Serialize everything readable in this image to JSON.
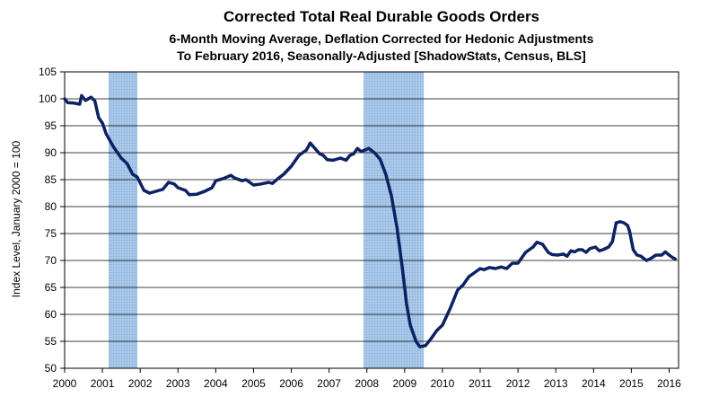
{
  "chart_data": {
    "type": "line",
    "title": "Corrected Total Real Durable Goods Orders",
    "subtitle_1": "6-Month Moving Average, Deflation Corrected for Hedonic Adjustments",
    "subtitle_2": "To February 2016, Seasonally-Adjusted [ShadowStats, Census, BLS]",
    "xlabel": "",
    "ylabel": "Index Level, January 2000 = 100",
    "xlim": [
      2000.0,
      2016.25
    ],
    "ylim": [
      50,
      105
    ],
    "grid": true,
    "legend": "none",
    "line_color": "#0d2163",
    "recession_color": "#a9c8e8",
    "xticks": [
      2000,
      2001,
      2002,
      2003,
      2004,
      2005,
      2006,
      2007,
      2008,
      2009,
      2010,
      2011,
      2012,
      2013,
      2014,
      2015,
      2016
    ],
    "yticks": [
      50,
      55,
      60,
      65,
      70,
      75,
      80,
      85,
      90,
      95,
      100,
      105
    ],
    "recessions": [
      {
        "start": 2001.17,
        "end": 2001.92
      },
      {
        "start": 2007.92,
        "end": 2009.5
      }
    ],
    "series": [
      {
        "points": [
          [
            2000.0,
            100.0
          ],
          [
            2000.08,
            99.3
          ],
          [
            2000.25,
            99.2
          ],
          [
            2000.4,
            99.0
          ],
          [
            2000.45,
            100.6
          ],
          [
            2000.55,
            99.7
          ],
          [
            2000.7,
            100.3
          ],
          [
            2000.8,
            99.6
          ],
          [
            2000.9,
            96.5
          ],
          [
            2001.0,
            95.5
          ],
          [
            2001.1,
            93.5
          ],
          [
            2001.3,
            91.0
          ],
          [
            2001.5,
            89.0
          ],
          [
            2001.65,
            88.0
          ],
          [
            2001.8,
            86.0
          ],
          [
            2001.92,
            85.5
          ],
          [
            2002.1,
            83.0
          ],
          [
            2002.25,
            82.5
          ],
          [
            2002.4,
            82.8
          ],
          [
            2002.5,
            83.0
          ],
          [
            2002.6,
            83.2
          ],
          [
            2002.75,
            84.5
          ],
          [
            2002.9,
            84.2
          ],
          [
            2003.0,
            83.5
          ],
          [
            2003.2,
            83.0
          ],
          [
            2003.3,
            82.2
          ],
          [
            2003.5,
            82.3
          ],
          [
            2003.7,
            82.8
          ],
          [
            2003.9,
            83.5
          ],
          [
            2004.0,
            84.8
          ],
          [
            2004.2,
            85.2
          ],
          [
            2004.4,
            85.8
          ],
          [
            2004.5,
            85.3
          ],
          [
            2004.7,
            84.8
          ],
          [
            2004.8,
            85.0
          ],
          [
            2005.0,
            84.0
          ],
          [
            2005.2,
            84.2
          ],
          [
            2005.4,
            84.5
          ],
          [
            2005.5,
            84.3
          ],
          [
            2005.65,
            85.2
          ],
          [
            2005.8,
            86.0
          ],
          [
            2006.0,
            87.5
          ],
          [
            2006.2,
            89.5
          ],
          [
            2006.4,
            90.5
          ],
          [
            2006.5,
            91.8
          ],
          [
            2006.6,
            91.0
          ],
          [
            2006.75,
            89.8
          ],
          [
            2006.85,
            89.5
          ],
          [
            2006.95,
            88.7
          ],
          [
            2007.1,
            88.6
          ],
          [
            2007.3,
            89.0
          ],
          [
            2007.45,
            88.6
          ],
          [
            2007.55,
            89.5
          ],
          [
            2007.65,
            89.8
          ],
          [
            2007.75,
            90.8
          ],
          [
            2007.85,
            90.2
          ],
          [
            2007.95,
            90.5
          ],
          [
            2008.05,
            90.8
          ],
          [
            2008.2,
            90.0
          ],
          [
            2008.35,
            88.8
          ],
          [
            2008.5,
            86.0
          ],
          [
            2008.65,
            82.0
          ],
          [
            2008.8,
            76.0
          ],
          [
            2008.95,
            68.0
          ],
          [
            2009.05,
            62.0
          ],
          [
            2009.15,
            58.0
          ],
          [
            2009.3,
            55.0
          ],
          [
            2009.4,
            54.0
          ],
          [
            2009.55,
            54.2
          ],
          [
            2009.7,
            55.5
          ],
          [
            2009.85,
            57.0
          ],
          [
            2010.0,
            58.0
          ],
          [
            2010.2,
            61.0
          ],
          [
            2010.4,
            64.5
          ],
          [
            2010.55,
            65.5
          ],
          [
            2010.7,
            67.0
          ],
          [
            2010.9,
            68.0
          ],
          [
            2011.0,
            68.5
          ],
          [
            2011.1,
            68.3
          ],
          [
            2011.25,
            68.7
          ],
          [
            2011.4,
            68.5
          ],
          [
            2011.55,
            68.8
          ],
          [
            2011.7,
            68.5
          ],
          [
            2011.85,
            69.5
          ],
          [
            2012.0,
            69.5
          ],
          [
            2012.1,
            70.5
          ],
          [
            2012.2,
            71.5
          ],
          [
            2012.4,
            72.5
          ],
          [
            2012.5,
            73.4
          ],
          [
            2012.65,
            73.0
          ],
          [
            2012.8,
            71.5
          ],
          [
            2012.9,
            71.1
          ],
          [
            2013.05,
            71.0
          ],
          [
            2013.2,
            71.2
          ],
          [
            2013.3,
            70.8
          ],
          [
            2013.4,
            71.8
          ],
          [
            2013.5,
            71.6
          ],
          [
            2013.6,
            72.0
          ],
          [
            2013.7,
            72.0
          ],
          [
            2013.8,
            71.5
          ],
          [
            2013.9,
            72.2
          ],
          [
            2014.05,
            72.5
          ],
          [
            2014.15,
            71.8
          ],
          [
            2014.25,
            72.0
          ],
          [
            2014.4,
            72.5
          ],
          [
            2014.5,
            73.5
          ],
          [
            2014.6,
            77.0
          ],
          [
            2014.7,
            77.2
          ],
          [
            2014.8,
            77.0
          ],
          [
            2014.9,
            76.5
          ],
          [
            2014.95,
            75.5
          ],
          [
            2015.05,
            72.0
          ],
          [
            2015.15,
            71.0
          ],
          [
            2015.25,
            70.8
          ],
          [
            2015.4,
            70.0
          ],
          [
            2015.5,
            70.3
          ],
          [
            2015.65,
            71.0
          ],
          [
            2015.8,
            71.0
          ],
          [
            2015.9,
            71.6
          ],
          [
            2016.0,
            71.0
          ],
          [
            2016.1,
            70.5
          ],
          [
            2016.16,
            70.3
          ]
        ]
      }
    ]
  }
}
